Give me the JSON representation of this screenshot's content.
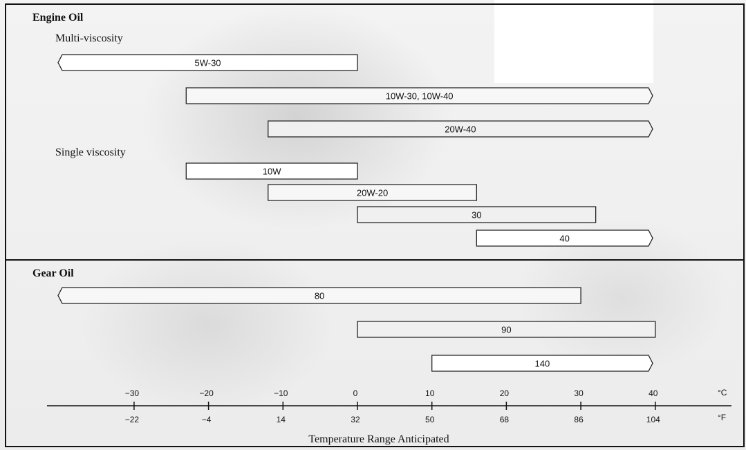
{
  "chart_data": {
    "type": "range_bars",
    "title": "",
    "xlabel": "Temperature Range Anticipated",
    "units": {
      "celsius": "°C",
      "fahrenheit": "°F"
    },
    "xlim_c": [
      -40,
      50
    ],
    "ticks_c": [
      "−30",
      "−20",
      "−10",
      "0",
      "10",
      "20",
      "30",
      "40"
    ],
    "ticks_c_values": [
      -30,
      -20,
      -10,
      0,
      10,
      20,
      30,
      40
    ],
    "ticks_f": [
      "−22",
      "−4",
      "14",
      "32",
      "50",
      "68",
      "86",
      "104"
    ],
    "sections": [
      {
        "title": "Engine Oil",
        "groups": [
          {
            "title": "Multi-viscosity",
            "bars": [
              {
                "label": "5W-30",
                "min_c": null,
                "max_c": 0,
                "open_low": true,
                "open_high": false
              },
              {
                "label": "10W-30, 10W-40",
                "min_c": -23,
                "max_c": null,
                "open_low": false,
                "open_high": true
              },
              {
                "label": "20W-40",
                "min_c": -12,
                "max_c": null,
                "open_low": false,
                "open_high": true
              }
            ]
          },
          {
            "title": "Single viscosity",
            "bars": [
              {
                "label": "10W",
                "min_c": -23,
                "max_c": 0,
                "open_low": false,
                "open_high": false
              },
              {
                "label": "20W-20",
                "min_c": -12,
                "max_c": 16,
                "open_low": false,
                "open_high": false
              },
              {
                "label": "30",
                "min_c": 0,
                "max_c": 32,
                "open_low": false,
                "open_high": false
              },
              {
                "label": "40",
                "min_c": 16,
                "max_c": null,
                "open_low": false,
                "open_high": true
              }
            ]
          }
        ]
      },
      {
        "title": "Gear Oil",
        "groups": [
          {
            "title": "",
            "bars": [
              {
                "label": "80",
                "min_c": null,
                "max_c": 30,
                "open_low": true,
                "open_high": false
              },
              {
                "label": "90",
                "min_c": 0,
                "max_c": 40,
                "open_low": false,
                "open_high": false
              },
              {
                "label": "140",
                "min_c": 10,
                "max_c": null,
                "open_low": false,
                "open_high": true
              }
            ]
          }
        ]
      }
    ]
  }
}
